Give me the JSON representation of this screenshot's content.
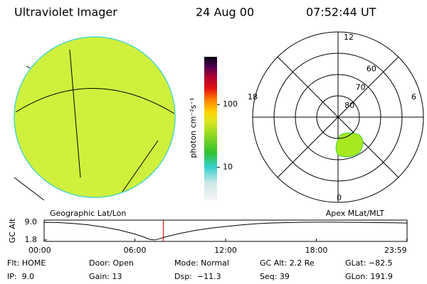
{
  "header": {
    "title": "Ultraviolet Imager",
    "date": "24 Aug 00",
    "time": "07:52:44 UT"
  },
  "colorbar": {
    "label": "photon cm⁻²s⁻¹",
    "log": true,
    "lim": [
      3,
      575
    ],
    "ticks": [
      10,
      100
    ]
  },
  "polar": {
    "mlt_labels": [
      "12",
      "18",
      "6",
      "0"
    ],
    "lat_circles": [
      80,
      70,
      60,
      50
    ],
    "lat_labels": [
      60,
      70,
      80
    ],
    "rlim": [
      90,
      50
    ]
  },
  "chart_data": {
    "type": "line",
    "title": "Geographic Lat/Lon",
    "subtitle": "Apex MLat/MLT",
    "y_label": "GC Alt",
    "x": [
      0,
      1,
      2,
      3,
      4,
      5,
      6,
      6.5,
      7,
      7.3,
      7.6,
      8,
      9,
      10,
      11,
      12,
      13,
      14,
      15,
      16,
      17,
      18,
      19,
      20,
      21,
      22,
      23,
      23.98
    ],
    "values": [
      9.0,
      8.9,
      8.5,
      7.9,
      7.0,
      5.8,
      4.2,
      3.2,
      2.0,
      1.8,
      2.2,
      3.0,
      4.5,
      5.7,
      6.6,
      7.3,
      7.9,
      8.4,
      8.7,
      8.9,
      9.0,
      9.05,
      9.05,
      9.0,
      8.95,
      8.9,
      8.8,
      8.7
    ],
    "color": "#000000",
    "marker_x": 7.88,
    "marker_color": "#cc0000",
    "xlim": [
      0,
      24
    ],
    "ylim": [
      1.2,
      9.9
    ],
    "xticks": [
      {
        "value": 0,
        "label": "00:00"
      },
      {
        "value": 6,
        "label": "06:00"
      },
      {
        "value": 12,
        "label": "12:00"
      },
      {
        "value": 18,
        "label": "18:00"
      },
      {
        "value": 23.98,
        "label": "23:59"
      }
    ],
    "yticks": [
      {
        "value": 9.0,
        "label": "9.0"
      },
      {
        "value": 1.8,
        "label": "1.8"
      }
    ]
  },
  "footer": [
    [
      "Flt: HOME",
      "Door: Open",
      "Mode: Normal",
      "GC Alt: 2.2 Re",
      "GLat: −82.5"
    ],
    [
      "IP:  9.0",
      "Gain: 13",
      "Dsp:  −11.3",
      "Seq: 39",
      "GLon: 191.9"
    ]
  ]
}
